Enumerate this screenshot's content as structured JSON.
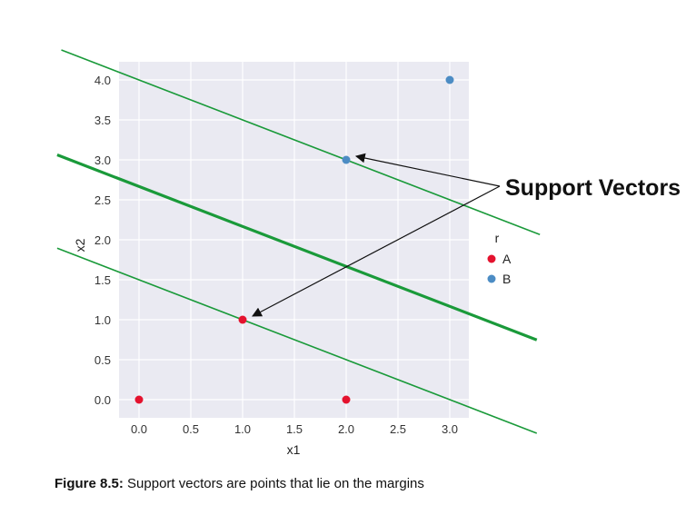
{
  "chart_data": {
    "type": "scatter",
    "xlabel": "x1",
    "ylabel": "x2",
    "xlim": [
      -0.2,
      3.05
    ],
    "ylim": [
      -0.2,
      4.2
    ],
    "xticks": [
      "0.0",
      "0.5",
      "1.0",
      "1.5",
      "2.0",
      "2.5",
      "3.0"
    ],
    "yticks": [
      "0.0",
      "0.5",
      "1.0",
      "1.5",
      "2.0",
      "2.5",
      "3.0",
      "3.5",
      "4.0"
    ],
    "grid": true,
    "legend": {
      "title": "r",
      "placement": "right",
      "entries": [
        "A",
        "B"
      ]
    },
    "series": [
      {
        "name": "A",
        "color": "#e4122e",
        "points": [
          [
            0,
            0
          ],
          [
            1,
            1
          ],
          [
            2,
            0
          ]
        ]
      },
      {
        "name": "B",
        "color": "#4c8cc4",
        "points": [
          [
            2,
            3
          ],
          [
            3,
            4
          ]
        ]
      }
    ],
    "lines": [
      {
        "role": "margin",
        "slope": -0.5,
        "intercept": 1.5,
        "color": "#1a9a3a"
      },
      {
        "role": "decision-boundary",
        "slope": -0.5,
        "intercept": 2.667,
        "color": "#1a9a3a"
      },
      {
        "role": "margin",
        "slope": -0.5,
        "intercept": 4.0,
        "color": "#1a9a3a"
      }
    ],
    "annotation": {
      "text": "Support Vectors",
      "targets": [
        [
          2,
          3
        ],
        [
          1,
          1
        ]
      ]
    }
  },
  "caption": {
    "label": "Figure 8.5:",
    "text": "Support vectors are points that lie on the margins"
  }
}
